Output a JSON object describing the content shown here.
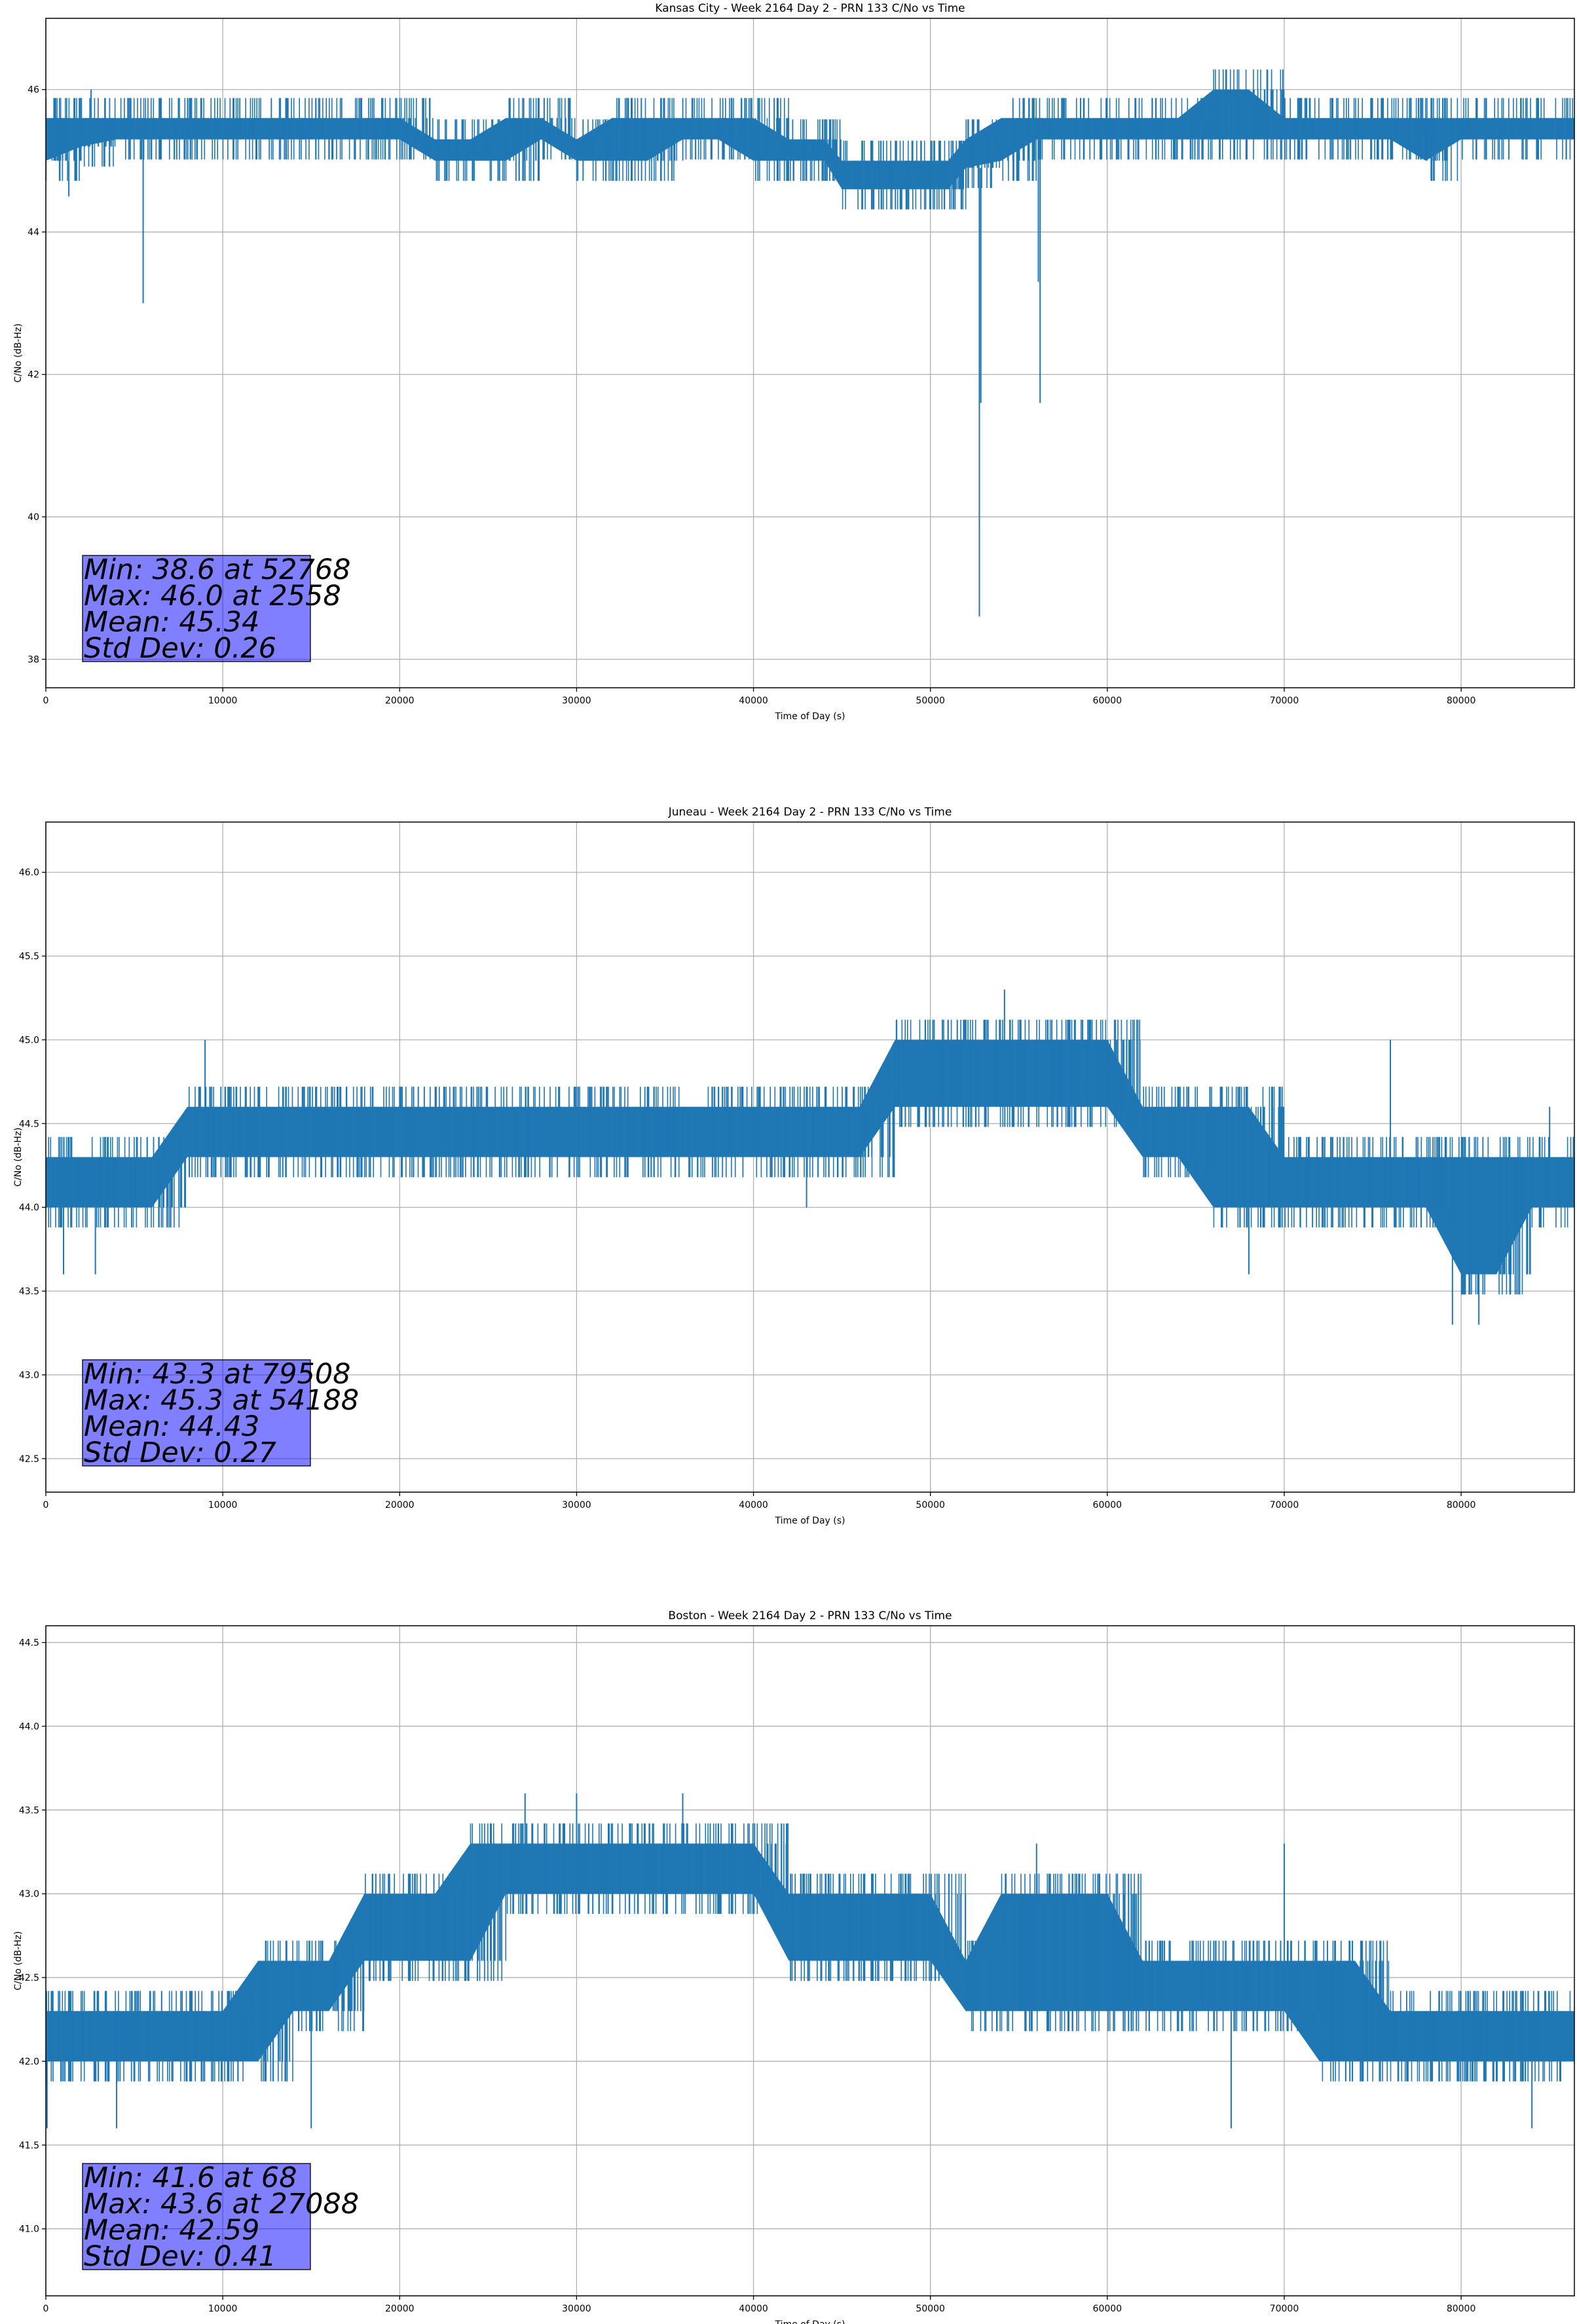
{
  "chart_data": [
    {
      "type": "line",
      "title": "Kansas City - Week 2164 Day 2 - PRN 133 C/No vs Time",
      "xlabel": "Time of Day (s)",
      "ylabel": "C/No (dB-Hz)",
      "xlim": [
        0,
        86400
      ],
      "ylim": [
        37.6,
        47.0
      ],
      "xticks": [
        0,
        10000,
        20000,
        30000,
        40000,
        50000,
        60000,
        70000,
        80000
      ],
      "yticks": [
        38,
        40,
        42,
        44,
        46
      ],
      "ytick_labels": [
        "38",
        "40",
        "42",
        "44",
        "46"
      ],
      "grid": true,
      "color": "#1f77b4",
      "series": [
        {
          "x": [
            0,
            2000,
            4000,
            6000,
            8000,
            10000,
            12000,
            14000,
            16000,
            18000,
            20000,
            22000,
            24000,
            26000,
            28000,
            30000,
            32000,
            34000,
            36000,
            38000,
            40000,
            42000,
            44000,
            45000,
            47000,
            49000,
            51000,
            52000,
            54000,
            56000,
            58000,
            60000,
            62000,
            64000,
            66000,
            68000,
            70000,
            72000,
            74000,
            76000,
            78000,
            80000,
            82000,
            84000,
            86400
          ],
          "y": [
            45.3,
            45.4,
            45.4,
            45.5,
            45.5,
            45.4,
            45.5,
            45.5,
            45.4,
            45.4,
            45.4,
            45.1,
            45.1,
            45.2,
            45.4,
            45.2,
            45.2,
            45.3,
            45.4,
            45.4,
            45.2,
            45.2,
            45.1,
            44.8,
            44.8,
            44.8,
            44.8,
            45.0,
            45.2,
            45.3,
            45.4,
            45.4,
            45.4,
            45.5,
            45.5,
            45.6,
            45.5,
            45.4,
            45.4,
            45.4,
            45.3,
            45.4,
            45.4,
            45.4,
            45.4
          ],
          "band_low": [
            45.0,
            45.2,
            45.3,
            45.3,
            45.3,
            45.3,
            45.3,
            45.3,
            45.3,
            45.3,
            45.3,
            45.0,
            45.0,
            45.0,
            45.3,
            45.0,
            45.0,
            45.0,
            45.3,
            45.3,
            45.0,
            45.0,
            45.0,
            44.6,
            44.6,
            44.6,
            44.6,
            44.9,
            45.0,
            45.3,
            45.3,
            45.3,
            45.3,
            45.3,
            45.3,
            45.3,
            45.3,
            45.3,
            45.3,
            45.3,
            45.0,
            45.3,
            45.3,
            45.3,
            45.3
          ],
          "band_high": [
            45.6,
            45.6,
            45.6,
            45.6,
            45.6,
            45.6,
            45.6,
            45.6,
            45.6,
            45.6,
            45.6,
            45.3,
            45.3,
            45.6,
            45.6,
            45.3,
            45.6,
            45.6,
            45.6,
            45.6,
            45.6,
            45.3,
            45.3,
            45.0,
            45.0,
            45.0,
            45.0,
            45.3,
            45.6,
            45.6,
            45.6,
            45.6,
            45.6,
            45.6,
            46.0,
            46.0,
            45.6,
            45.6,
            45.6,
            45.6,
            45.6,
            45.6,
            45.6,
            45.6,
            45.6
          ],
          "spikes": [
            [
              1300,
              44.5
            ],
            [
              700,
              45.0
            ],
            [
              5500,
              43.0
            ],
            [
              52768,
              38.6
            ],
            [
              52850,
              41.6
            ],
            [
              56100,
              43.3
            ],
            [
              56200,
              41.6
            ],
            [
              2558,
              46.0
            ]
          ]
        }
      ],
      "stats": [
        "Min: 38.6 at 52768",
        "Max: 46.0 at 2558",
        "Mean: 45.34",
        "Std Dev: 0.26"
      ]
    },
    {
      "type": "line",
      "title": "Juneau - Week 2164 Day 2 - PRN 133 C/No vs Time",
      "xlabel": "Time of Day (s)",
      "ylabel": "C/No (dB-Hz)",
      "xlim": [
        0,
        86400
      ],
      "ylim": [
        42.3,
        46.3
      ],
      "xticks": [
        0,
        10000,
        20000,
        30000,
        40000,
        50000,
        60000,
        70000,
        80000
      ],
      "yticks": [
        42.5,
        43.0,
        43.5,
        44.0,
        44.5,
        45.0,
        45.5,
        46.0
      ],
      "ytick_labels": [
        "42.5",
        "43.0",
        "43.5",
        "44.0",
        "44.5",
        "45.0",
        "45.5",
        "46.0"
      ],
      "grid": true,
      "color": "#1f77b4",
      "series": [
        {
          "x": [
            0,
            2000,
            4000,
            6000,
            8000,
            10000,
            12000,
            14000,
            16000,
            18000,
            20000,
            22000,
            24000,
            26000,
            28000,
            30000,
            32000,
            34000,
            36000,
            38000,
            40000,
            42000,
            44000,
            46000,
            48000,
            50000,
            52000,
            54000,
            56000,
            58000,
            60000,
            62000,
            64000,
            66000,
            68000,
            70000,
            72000,
            74000,
            76000,
            78000,
            80000,
            82000,
            84000,
            86400
          ],
          "y": [
            44.15,
            44.15,
            44.15,
            44.2,
            44.35,
            44.45,
            44.45,
            44.45,
            44.5,
            44.5,
            44.5,
            44.5,
            44.5,
            44.45,
            44.5,
            44.5,
            44.5,
            44.5,
            44.5,
            44.5,
            44.5,
            44.45,
            44.45,
            44.45,
            44.8,
            44.8,
            44.8,
            44.85,
            44.8,
            44.8,
            44.8,
            44.6,
            44.4,
            44.4,
            44.3,
            44.2,
            44.2,
            44.2,
            44.15,
            44.15,
            43.95,
            44.1,
            44.15,
            44.15
          ],
          "band_low": [
            44.0,
            44.0,
            44.0,
            44.0,
            44.3,
            44.3,
            44.3,
            44.3,
            44.3,
            44.3,
            44.3,
            44.3,
            44.3,
            44.3,
            44.3,
            44.3,
            44.3,
            44.3,
            44.3,
            44.3,
            44.3,
            44.3,
            44.3,
            44.3,
            44.6,
            44.6,
            44.6,
            44.6,
            44.6,
            44.6,
            44.6,
            44.3,
            44.3,
            44.0,
            44.0,
            44.0,
            44.0,
            44.0,
            44.0,
            44.0,
            43.6,
            43.6,
            44.0,
            44.0
          ],
          "band_high": [
            44.3,
            44.3,
            44.3,
            44.3,
            44.6,
            44.6,
            44.6,
            44.6,
            44.6,
            44.6,
            44.6,
            44.6,
            44.6,
            44.6,
            44.6,
            44.6,
            44.6,
            44.6,
            44.6,
            44.6,
            44.6,
            44.6,
            44.6,
            44.6,
            45.0,
            45.0,
            45.0,
            45.0,
            45.0,
            45.0,
            45.0,
            44.6,
            44.6,
            44.6,
            44.6,
            44.3,
            44.3,
            44.3,
            44.3,
            44.3,
            44.3,
            44.3,
            44.3,
            44.3
          ],
          "spikes": [
            [
              79508,
              43.3
            ],
            [
              81000,
              43.3
            ],
            [
              54188,
              45.3
            ],
            [
              68000,
              43.6
            ],
            [
              1000,
              43.6
            ],
            [
              2800,
              43.6
            ],
            [
              9000,
              45.0
            ],
            [
              43000,
              44.0
            ],
            [
              76000,
              45.0
            ],
            [
              85000,
              44.6
            ]
          ]
        }
      ],
      "stats": [
        "Min: 43.3 at 79508",
        "Max: 45.3 at 54188",
        "Mean: 44.43",
        "Std Dev: 0.27"
      ]
    },
    {
      "type": "line",
      "title": "Boston - Week 2164 Day 2 - PRN 133 C/No vs Time",
      "xlabel": "Time of Day (s)",
      "ylabel": "C/No (dB-Hz)",
      "xlim": [
        0,
        86400
      ],
      "ylim": [
        40.6,
        44.6
      ],
      "xticks": [
        0,
        10000,
        20000,
        30000,
        40000,
        50000,
        60000,
        70000,
        80000
      ],
      "yticks": [
        41.0,
        41.5,
        42.0,
        42.5,
        43.0,
        43.5,
        44.0,
        44.5
      ],
      "ytick_labels": [
        "41.0",
        "41.5",
        "42.0",
        "42.5",
        "43.0",
        "43.5",
        "44.0",
        "44.5"
      ],
      "grid": true,
      "color": "#1f77b4",
      "series": [
        {
          "x": [
            0,
            2000,
            4000,
            6000,
            8000,
            10000,
            12000,
            14000,
            16000,
            18000,
            20000,
            22000,
            24000,
            26000,
            28000,
            30000,
            32000,
            34000,
            36000,
            38000,
            40000,
            42000,
            44000,
            46000,
            48000,
            50000,
            52000,
            54000,
            56000,
            58000,
            60000,
            62000,
            64000,
            66000,
            68000,
            70000,
            72000,
            74000,
            76000,
            78000,
            80000,
            82000,
            84000,
            86400
          ],
          "y": [
            42.15,
            42.15,
            42.15,
            42.15,
            42.2,
            42.15,
            42.2,
            42.45,
            42.5,
            42.8,
            42.8,
            42.9,
            43.0,
            43.1,
            43.15,
            43.15,
            43.15,
            43.15,
            43.15,
            43.15,
            43.1,
            42.85,
            42.8,
            42.8,
            42.8,
            42.8,
            42.5,
            42.6,
            42.7,
            42.6,
            42.7,
            42.55,
            42.5,
            42.45,
            42.45,
            42.5,
            42.45,
            42.4,
            42.3,
            42.2,
            42.15,
            42.15,
            42.15,
            42.15
          ],
          "band_low": [
            42.0,
            42.0,
            42.0,
            42.0,
            42.0,
            42.0,
            42.0,
            42.3,
            42.3,
            42.6,
            42.6,
            42.6,
            42.6,
            43.0,
            43.0,
            43.0,
            43.0,
            43.0,
            43.0,
            43.0,
            43.0,
            42.6,
            42.6,
            42.6,
            42.6,
            42.6,
            42.3,
            42.3,
            42.3,
            42.3,
            42.3,
            42.3,
            42.3,
            42.3,
            42.3,
            42.3,
            42.0,
            42.0,
            42.0,
            42.0,
            42.0,
            42.0,
            42.0,
            42.0
          ],
          "band_high": [
            42.3,
            42.3,
            42.3,
            42.3,
            42.3,
            42.3,
            42.6,
            42.6,
            42.6,
            43.0,
            43.0,
            43.0,
            43.3,
            43.3,
            43.3,
            43.3,
            43.3,
            43.3,
            43.3,
            43.3,
            43.3,
            43.0,
            43.0,
            43.0,
            43.0,
            43.0,
            42.6,
            43.0,
            43.0,
            43.0,
            43.0,
            42.6,
            42.6,
            42.6,
            42.6,
            42.6,
            42.6,
            42.6,
            42.3,
            42.3,
            42.3,
            42.3,
            42.3,
            42.3
          ],
          "spikes": [
            [
              68,
              41.6
            ],
            [
              27088,
              43.6
            ],
            [
              30000,
              43.6
            ],
            [
              36000,
              43.6
            ],
            [
              4000,
              41.6
            ],
            [
              15000,
              41.6
            ],
            [
              67000,
              41.6
            ],
            [
              84000,
              41.6
            ],
            [
              56000,
              43.3
            ],
            [
              70000,
              43.3
            ]
          ]
        }
      ],
      "stats": [
        "Min: 41.6 at 68",
        "Max: 43.6 at 27088",
        "Mean: 42.59",
        "Std Dev: 0.41"
      ]
    }
  ]
}
